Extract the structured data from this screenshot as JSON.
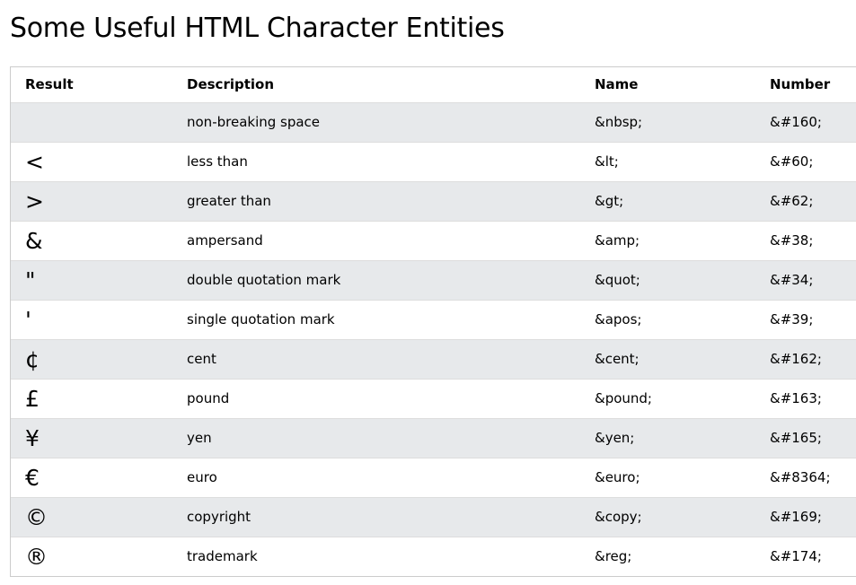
{
  "page": {
    "title": "Some Useful HTML Character Entities"
  },
  "table": {
    "headers": {
      "result": "Result",
      "description": "Description",
      "name": "Name",
      "number": "Number"
    },
    "rows": [
      {
        "result": " ",
        "description": "non-breaking space",
        "name": "&nbsp;",
        "number": "&#160;"
      },
      {
        "result": "<",
        "description": "less than",
        "name": "&lt;",
        "number": "&#60;"
      },
      {
        "result": ">",
        "description": "greater than",
        "name": "&gt;",
        "number": "&#62;"
      },
      {
        "result": "&",
        "description": "ampersand",
        "name": "&amp;",
        "number": "&#38;"
      },
      {
        "result": "\"",
        "description": "double quotation mark",
        "name": "&quot;",
        "number": "&#34;"
      },
      {
        "result": "'",
        "description": "single quotation mark",
        "name": "&apos;",
        "number": "&#39;"
      },
      {
        "result": "¢",
        "description": "cent",
        "name": "&cent;",
        "number": "&#162;"
      },
      {
        "result": "£",
        "description": "pound",
        "name": "&pound;",
        "number": "&#163;"
      },
      {
        "result": "¥",
        "description": "yen",
        "name": "&yen;",
        "number": "&#165;"
      },
      {
        "result": "€",
        "description": "euro",
        "name": "&euro;",
        "number": "&#8364;"
      },
      {
        "result": "©",
        "description": "copyright",
        "name": "&copy;",
        "number": "&#169;"
      },
      {
        "result": "®",
        "description": "trademark",
        "name": "&reg;",
        "number": "&#174;"
      }
    ]
  },
  "colors": {
    "stripe": "#e7e9eb",
    "background": "#ffffff",
    "border": "#cccccc"
  }
}
